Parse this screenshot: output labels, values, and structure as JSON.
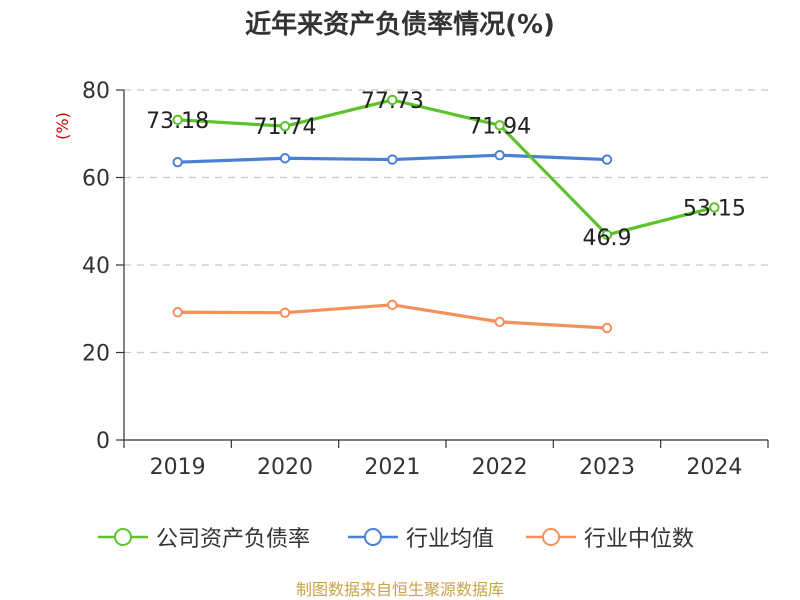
{
  "chart_data": {
    "type": "line",
    "title": "近年来资产负债率情况(%)",
    "ylabel": "(%)",
    "xlabel": "",
    "categories": [
      "2019",
      "2020",
      "2021",
      "2022",
      "2023",
      "2024"
    ],
    "ylim": [
      0,
      80
    ],
    "yticks": [
      0,
      20,
      40,
      60,
      80
    ],
    "grid": true,
    "legend_position": "bottom",
    "series": [
      {
        "name": "公司资产负债率",
        "color": "#5ec22b",
        "values": [
          73.18,
          71.74,
          77.73,
          71.94,
          46.9,
          53.15
        ],
        "labels": [
          "73.18",
          "71.74",
          "77.73",
          "71.94",
          "46.9",
          "53.15"
        ]
      },
      {
        "name": "行业均值",
        "color": "#4a7fd6",
        "values": [
          63.5,
          64.4,
          64.1,
          65.1,
          64.1,
          null
        ]
      },
      {
        "name": "行业中位数",
        "color": "#f5905a",
        "values": [
          29.2,
          29.1,
          30.9,
          27.0,
          25.6,
          null
        ]
      }
    ]
  },
  "source_note": "制图数据来自恒生聚源数据库"
}
